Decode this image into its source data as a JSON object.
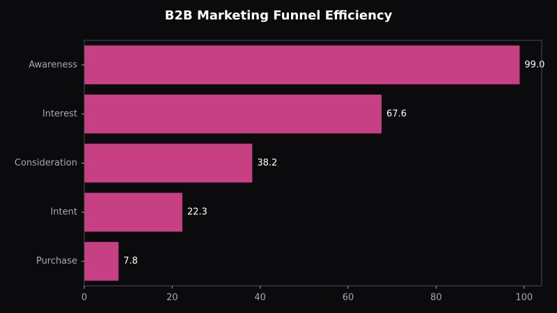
{
  "chart_data": {
    "type": "bar",
    "orientation": "horizontal",
    "title": "B2B Marketing Funnel Efficiency",
    "xlabel": "",
    "ylabel": "",
    "categories": [
      "Awareness",
      "Interest",
      "Consideration",
      "Intent",
      "Purchase"
    ],
    "values": [
      99.0,
      67.6,
      38.2,
      22.3,
      7.8
    ],
    "value_labels": [
      "99.0",
      "67.6",
      "38.2",
      "22.3",
      "7.8"
    ],
    "xlim": [
      0,
      104
    ],
    "xticks": [
      0,
      20,
      40,
      60,
      80,
      100
    ],
    "grid": false,
    "colors": {
      "background": "#0b0a0d",
      "bar": "#c84084",
      "axis": "#4a4a52",
      "tick_label": "#a9a9b3",
      "value_label": "#ffffff",
      "title": "#ffffff"
    }
  }
}
